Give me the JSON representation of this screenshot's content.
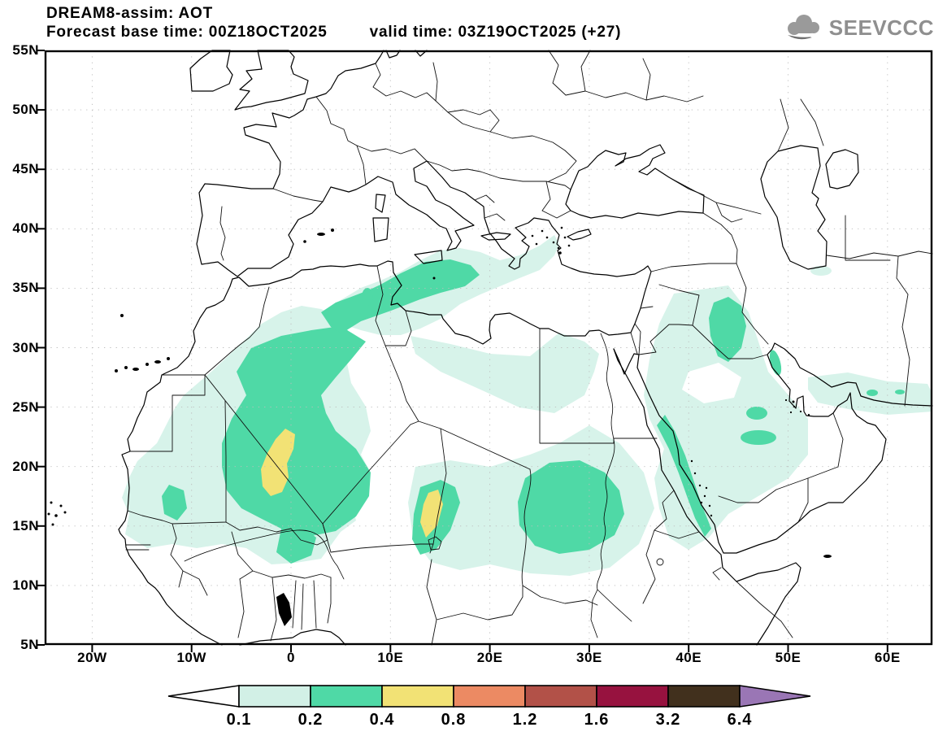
{
  "header": {
    "title": "DREAM8-assim: AOT",
    "forecast_base": "Forecast base time: 00Z18OCT2025",
    "valid_time": "valid time: 03Z19OCT2025 (+27)"
  },
  "logo": {
    "text": "SEEVCCC",
    "color": "#8f8f8f"
  },
  "map": {
    "lon_ticks": [
      "20W",
      "10W",
      "0",
      "10E",
      "20E",
      "30E",
      "40E",
      "50E",
      "60E"
    ],
    "lat_ticks": [
      "55N",
      "50N",
      "45N",
      "40N",
      "35N",
      "30N",
      "25N",
      "20N",
      "15N",
      "10N",
      "5N"
    ]
  },
  "colorbar": {
    "labels": [
      "0.1",
      "0.2",
      "0.4",
      "0.8",
      "1.2",
      "1.6",
      "3.2",
      "6.4"
    ],
    "segment_colors": [
      "#d2f0e6",
      "#4fd9a6",
      "#f2e275",
      "#ec8a63",
      "#b25148",
      "#97123f",
      "#41301d"
    ],
    "left_arrow_color": "#ffffff",
    "right_arrow_color": "#9a76b5",
    "outline_color": "#000000"
  },
  "chart_data": {
    "type": "heatmap",
    "title": "DREAM8-assim: AOT",
    "variable": "Aerosol Optical Thickness (dust AOT), filled contours over geographic map",
    "model": "DREAM8-assim",
    "forecast_base_time": "00Z18OCT2025",
    "valid_time": "03Z19OCT2025",
    "lead_hours": 27,
    "x_axis": {
      "label": "longitude",
      "range_deg": [
        -24.8,
        64.6
      ],
      "ticks": [
        "20W",
        "10W",
        "0",
        "10E",
        "20E",
        "30E",
        "40E",
        "50E",
        "60E"
      ]
    },
    "y_axis": {
      "label": "latitude",
      "range_deg": [
        5,
        55
      ],
      "ticks": [
        "55N",
        "50N",
        "45N",
        "40N",
        "35N",
        "30N",
        "25N",
        "20N",
        "15N",
        "10N",
        "5N"
      ]
    },
    "grid": "dotted graticule every 10 deg lon x 5 deg lat",
    "levels": [
      0.1,
      0.2,
      0.4,
      0.8,
      1.2,
      1.6,
      3.2,
      6.4
    ],
    "level_colors": [
      "#d2f0e6",
      "#4fd9a6",
      "#f2e275",
      "#ec8a63",
      "#b25148",
      "#97123f",
      "#41301d",
      "#9a76b5"
    ],
    "legend_position": "bottom center, horizontal arrow colorbar",
    "max_shaded_level_present": 0.8,
    "features": [
      {
        "region": "western Sahara interior (Mali / S Algeria)",
        "lon": [
          -8,
          8
        ],
        "lat": [
          14,
          31
        ],
        "aot": "0.2-0.4 broad S-shaped mass"
      },
      {
        "region": "Mali core",
        "lon": [
          -2.5,
          0.3
        ],
        "lat": [
          17.5,
          23
        ],
        "aot": "0.4-0.8 (yellow)"
      },
      {
        "region": "NE Algeria - Tunisia - NW Libya coast into Strait of Sicily",
        "lon": [
          2,
          19
        ],
        "lat": [
          32,
          37.5
        ],
        "aot": "0.2-0.4 band inside 0.1-0.2 Mediterranean plume reaching Greece/Aegean"
      },
      {
        "region": "Bodele / Chad",
        "lon": [
          12,
          17
        ],
        "lat": [
          12,
          18.5
        ],
        "aot": "0.2-0.4 with 0.4-0.8 core near 13.5-15.5E, 14.5-18N"
      },
      {
        "region": "central Sudan",
        "lon": [
          23,
          33.5
        ],
        "lat": [
          11.5,
          19.5
        ],
        "aot": "0.2-0.4 large blob"
      },
      {
        "region": "Red Sea coastal belt",
        "lon": [
          35,
          42
        ],
        "lat": [
          13,
          24
        ],
        "aot": "0.2-0.4 narrow band"
      },
      {
        "region": "Iraq / lower Mesopotamia",
        "lon": [
          42,
          46
        ],
        "lat": [
          28.5,
          34.5
        ],
        "aot": "0.2-0.4 blob"
      },
      {
        "region": "central Saudi Arabia",
        "lon": [
          43.5,
          48
        ],
        "lat": [
          19.5,
          24.5
        ],
        "aot": "0.2-0.4 spots"
      },
      {
        "region": "Sahara-Sahel-Arabia background",
        "lon": [
          -17,
          52
        ],
        "lat": [
          10,
          35
        ],
        "aot": "0.1-0.2 extensive patches"
      },
      {
        "region": "Gulf of Oman / Makran coast",
        "lon": [
          52,
          65
        ],
        "lat": [
          24.5,
          28
        ],
        "aot": "0.1-0.2 strip with small 0.2-0.4 spots"
      },
      {
        "region": "south Caspian shore",
        "lon": [
          52,
          55
        ],
        "lat": [
          36,
          37
        ],
        "aot": "0.1-0.2 small spot"
      }
    ]
  }
}
